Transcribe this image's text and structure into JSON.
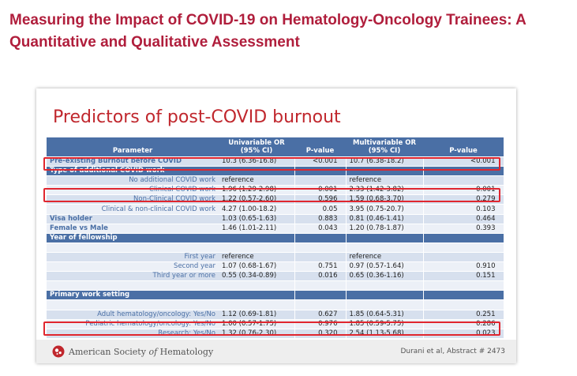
{
  "page": {
    "title": "Measuring the Impact of COVID-19 on Hematology-Oncology Trainees: A Quantitative and Qualitative Assessment"
  },
  "slide": {
    "title": "Predictors of post-COVID burnout",
    "columns": {
      "parameter": "Parameter",
      "uni_or": "Univariable OR (95% CI)",
      "uni_p": "P-value",
      "multi_or": "Multivariable OR (95% CI)",
      "multi_p": "P-value"
    },
    "rows": [
      {
        "label": "Pre-existing Burnout before COVID",
        "uni_or": "10.3 (6.36-16.8)",
        "uni_p": "<0.001",
        "multi_or": "10.7 (6.38-18.2)",
        "multi_p": "<0.001"
      },
      {
        "label": "Type of additional COVID work"
      },
      {
        "label": "No additional COVID work",
        "uni_or": "reference",
        "uni_p": "",
        "multi_or": "reference",
        "multi_p": ""
      },
      {
        "label": "Clinical COVID work",
        "uni_or": "1.96 (1.29-2.98)",
        "uni_p": "0.001",
        "multi_or": "2.33 (1.42-3.82)",
        "multi_p": "0.001"
      },
      {
        "label": "Non-Clinical COVID work",
        "uni_or": "1.22 (0.57-2.60)",
        "uni_p": "0.596",
        "multi_or": "1.59 (0.68-3.70)",
        "multi_p": "0.279"
      },
      {
        "label": "Clinical & non-clinical COVID work",
        "uni_or": "4.27 (1.00-18.2)",
        "uni_p": "0.05",
        "multi_or": "3.95 (0.75-20.7)",
        "multi_p": "0.103"
      },
      {
        "label": "Visa holder",
        "uni_or": "1.03 (0.65-1.63)",
        "uni_p": "0.883",
        "multi_or": "0.81 (0.46-1.41)",
        "multi_p": "0.464"
      },
      {
        "label": "Female vs Male",
        "uni_or": "1.46 (1.01-2.11)",
        "uni_p": "0.043",
        "multi_or": "1.20 (0.78-1.87)",
        "multi_p": "0.393"
      },
      {
        "label": "Year of fellowship"
      },
      {
        "label": "",
        "uni_or": "",
        "uni_p": "",
        "multi_or": "",
        "multi_p": ""
      },
      {
        "label": "First year",
        "uni_or": "reference",
        "uni_p": "",
        "multi_or": "reference",
        "multi_p": ""
      },
      {
        "label": "Second year",
        "uni_or": "1.07 (0.68-1.67)",
        "uni_p": "0.751",
        "multi_or": "0.97 (0.57-1.64)",
        "multi_p": "0.910"
      },
      {
        "label": "Third year or more",
        "uni_or": "0.55 (0.34-0.89)",
        "uni_p": "0.016",
        "multi_or": "0.65 (0.36-1.16)",
        "multi_p": "0.151"
      },
      {
        "label": "",
        "uni_or": "",
        "uni_p": "",
        "multi_or": "",
        "multi_p": ""
      },
      {
        "label": "Primary work setting"
      },
      {
        "label": "",
        "uni_or": "",
        "uni_p": "",
        "multi_or": "",
        "multi_p": ""
      },
      {
        "label": "Adult hematology/oncology: Yes/No",
        "uni_or": "1.12 (0.69-1.81)",
        "uni_p": "0.627",
        "multi_or": "1.85 (0.64-5.31)",
        "multi_p": "0.251"
      },
      {
        "label": "Pediatric hematology/oncology: Yes/No",
        "uni_or": "1.00 (0.57-1.75)",
        "uni_p": "0.976",
        "multi_or": "1.85 (0.59-5.75)",
        "multi_p": "0.286"
      },
      {
        "label": "Research: Yes/No",
        "uni_or": "1.32 (0.76-2.30)",
        "uni_p": "0.320",
        "multi_or": "2.54 (1.13-5.68)",
        "multi_p": "0.023"
      }
    ],
    "highlight_color": "#e0262f",
    "header_color": "#4a6fa5"
  },
  "footer": {
    "society_prefix": "American Society ",
    "society_of": "of",
    "society_suffix": " Hematology",
    "citation": "Durani et al, Abstract # 2473",
    "logo_icon": "ash-logo-icon"
  }
}
